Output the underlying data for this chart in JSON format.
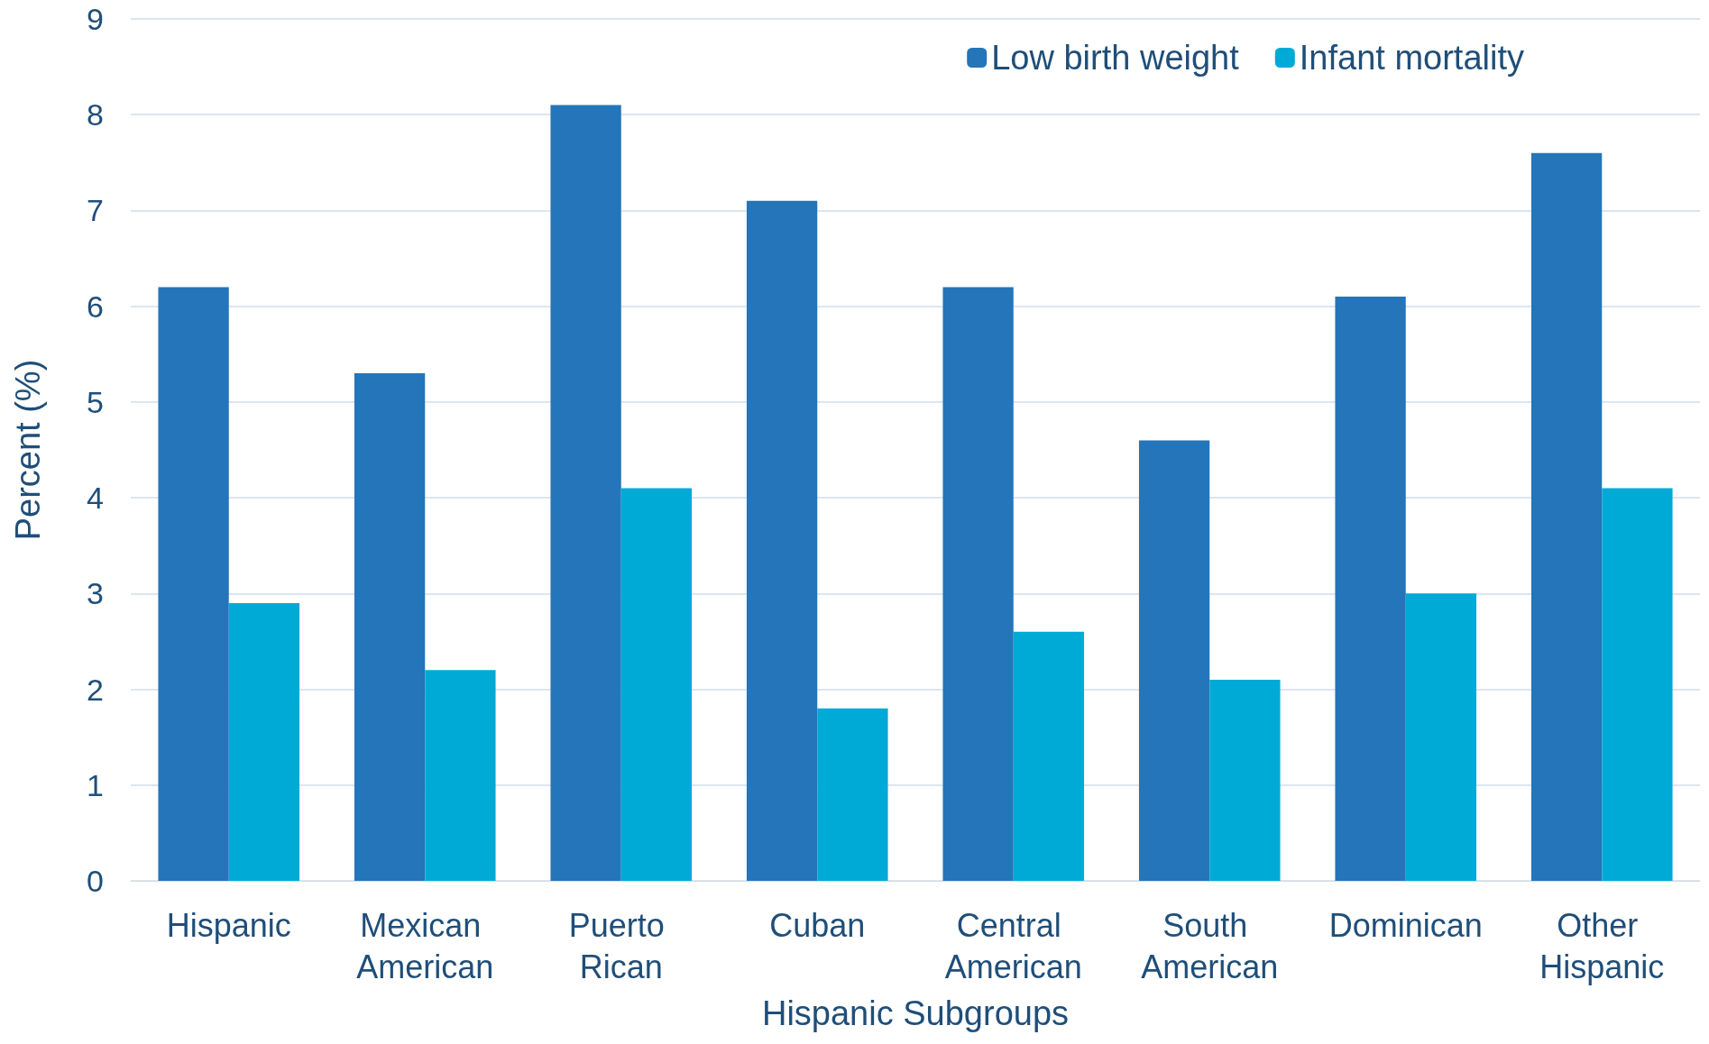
{
  "chart_data": {
    "type": "bar",
    "xlabel": "Hispanic Subgroups",
    "ylabel": "Percent (%)",
    "categories": [
      "Hispanic",
      "Mexican American",
      "Puerto Rican",
      "Cuban",
      "Central American",
      "South American",
      "Dominican",
      "Other Hispanic"
    ],
    "series": [
      {
        "name": "Low birth weight",
        "color": "#2475b9",
        "values": [
          6.2,
          5.3,
          8.1,
          7.1,
          6.2,
          4.6,
          6.1,
          7.6
        ]
      },
      {
        "name": "Infant mortality",
        "color": "#00aad7",
        "values": [
          2.9,
          2.2,
          4.1,
          1.8,
          2.6,
          2.1,
          3.0,
          4.1
        ]
      }
    ],
    "ylim": [
      0,
      9
    ],
    "yticks": [
      0,
      1,
      2,
      3,
      4,
      5,
      6,
      7,
      8,
      9
    ],
    "grid": "y",
    "legend": "top right"
  }
}
